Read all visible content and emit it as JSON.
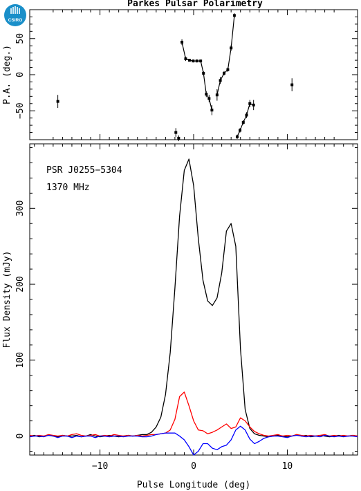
{
  "title": "Parkes Pulsar Polarimetry",
  "logo_text": "CSIRO",
  "annotation": {
    "psr": "PSR J0255−5304",
    "freq": "1370 MHz"
  },
  "chart_data": [
    {
      "type": "scatter",
      "panel": "top",
      "ylabel": "P.A. (deg.)",
      "xlim": [
        -17.5,
        17.5
      ],
      "ylim": [
        -90,
        90
      ],
      "yticks": [
        -50,
        0,
        50
      ],
      "ytick_labels": [
        "−50",
        "0",
        "50"
      ],
      "points": [
        {
          "x": -14.5,
          "y": -37,
          "err": 9
        },
        {
          "x": -1.9,
          "y": -80,
          "err": 6
        },
        {
          "x": -1.6,
          "y": -88,
          "err": 4
        },
        {
          "x": -1.25,
          "y": 45,
          "err": 4
        },
        {
          "x": -0.85,
          "y": 22,
          "err": 3
        },
        {
          "x": -0.45,
          "y": 20,
          "err": 2
        },
        {
          "x": -0.05,
          "y": 19,
          "err": 2
        },
        {
          "x": 0.35,
          "y": 19,
          "err": 2
        },
        {
          "x": 0.75,
          "y": 19,
          "err": 2
        },
        {
          "x": 1.05,
          "y": 2,
          "err": 3
        },
        {
          "x": 1.35,
          "y": -27,
          "err": 4
        },
        {
          "x": 1.65,
          "y": -33,
          "err": 5
        },
        {
          "x": 1.95,
          "y": -49,
          "err": 7
        },
        {
          "x": 2.5,
          "y": -28,
          "err": 8
        },
        {
          "x": 2.85,
          "y": -8,
          "err": 5
        },
        {
          "x": 3.25,
          "y": 2,
          "err": 3
        },
        {
          "x": 3.65,
          "y": 7,
          "err": 3
        },
        {
          "x": 4.0,
          "y": 37,
          "err": 4
        },
        {
          "x": 4.35,
          "y": 82,
          "err": 3
        },
        {
          "x": 4.65,
          "y": -86,
          "err": 3
        },
        {
          "x": 4.95,
          "y": -77,
          "err": 3
        },
        {
          "x": 5.3,
          "y": -66,
          "err": 3
        },
        {
          "x": 5.65,
          "y": -56,
          "err": 4
        },
        {
          "x": 6.0,
          "y": -40,
          "err": 5
        },
        {
          "x": 6.4,
          "y": -42,
          "err": 7
        },
        {
          "x": 10.5,
          "y": -14,
          "err": 9
        }
      ],
      "segments": [
        [
          3,
          12
        ],
        [
          13,
          18
        ],
        [
          19,
          24
        ]
      ]
    },
    {
      "type": "line",
      "panel": "bottom",
      "xlabel": "Pulse Longitude (deg)",
      "ylabel": "Flux Density (mJy)",
      "xlim": [
        -17.5,
        17.5
      ],
      "ylim": [
        -25,
        385
      ],
      "xticks": [
        -10,
        0,
        10
      ],
      "xtick_labels": [
        "−10",
        "0",
        "10"
      ],
      "yticks": [
        0,
        100,
        200,
        300
      ],
      "ytick_labels": [
        "0",
        "100",
        "200",
        "300"
      ],
      "x": [
        -17.5,
        -17.0,
        -16.5,
        -16.0,
        -15.5,
        -15.0,
        -14.5,
        -14.0,
        -13.5,
        -13.0,
        -12.5,
        -12.0,
        -11.5,
        -11.0,
        -10.5,
        -10.0,
        -9.5,
        -9.0,
        -8.5,
        -8.0,
        -7.5,
        -7.0,
        -6.5,
        -6.0,
        -5.5,
        -5.0,
        -4.5,
        -4.0,
        -3.5,
        -3.0,
        -2.5,
        -2.0,
        -1.5,
        -1.0,
        -0.5,
        0.0,
        0.5,
        1.0,
        1.5,
        2.0,
        2.5,
        3.0,
        3.5,
        4.0,
        4.5,
        5.0,
        5.5,
        6.0,
        6.5,
        7.0,
        7.5,
        8.0,
        8.5,
        9.0,
        9.5,
        10.0,
        10.5,
        11.0,
        11.5,
        12.0,
        12.5,
        13.0,
        13.5,
        14.0,
        14.5,
        15.0,
        15.5,
        16.0,
        16.5,
        17.0,
        17.5
      ],
      "series": [
        {
          "color": "#000000",
          "values": [
            0,
            1,
            -1,
            0,
            1,
            0,
            -1,
            1,
            0,
            0,
            1,
            -1,
            0,
            2,
            0,
            -1,
            0,
            1,
            0,
            -1,
            0,
            1,
            0,
            1,
            2,
            2,
            5,
            12,
            25,
            55,
            110,
            195,
            290,
            350,
            365,
            330,
            260,
            205,
            178,
            172,
            182,
            215,
            270,
            280,
            250,
            115,
            35,
            10,
            3,
            1,
            0,
            -1,
            0,
            1,
            0,
            -1,
            0,
            2,
            0,
            1,
            -1,
            0,
            1,
            0,
            -1,
            0,
            1,
            0,
            0,
            1,
            0
          ]
        },
        {
          "color": "#ff0000",
          "values": [
            1,
            0,
            1,
            0,
            2,
            1,
            0,
            1,
            0,
            2,
            3,
            1,
            0,
            1,
            2,
            0,
            1,
            0,
            2,
            1,
            0,
            1,
            0,
            1,
            0,
            1,
            2,
            2,
            3,
            4,
            8,
            22,
            52,
            58,
            40,
            20,
            8,
            7,
            3,
            5,
            8,
            12,
            16,
            10,
            12,
            24,
            20,
            12,
            6,
            3,
            1,
            0,
            1,
            2,
            0,
            1,
            0,
            2,
            1,
            0,
            1,
            0,
            1,
            2,
            0,
            1,
            0,
            1,
            0,
            1,
            0
          ]
        },
        {
          "color": "#0000ff",
          "values": [
            -1,
            0,
            0,
            -1,
            1,
            0,
            -2,
            0,
            0,
            -2,
            0,
            -1,
            0,
            0,
            -2,
            0,
            0,
            -1,
            0,
            0,
            -1,
            0,
            0,
            0,
            -1,
            -1,
            0,
            2,
            3,
            4,
            4,
            4,
            0,
            -5,
            -14,
            -25,
            -20,
            -10,
            -10,
            -16,
            -18,
            -14,
            -12,
            -5,
            8,
            13,
            8,
            -4,
            -10,
            -7,
            -3,
            -1,
            0,
            0,
            -1,
            -2,
            0,
            1,
            0,
            -1,
            0,
            0,
            -1,
            1,
            0,
            -1,
            0,
            -1,
            0,
            0,
            -1
          ]
        }
      ]
    }
  ]
}
